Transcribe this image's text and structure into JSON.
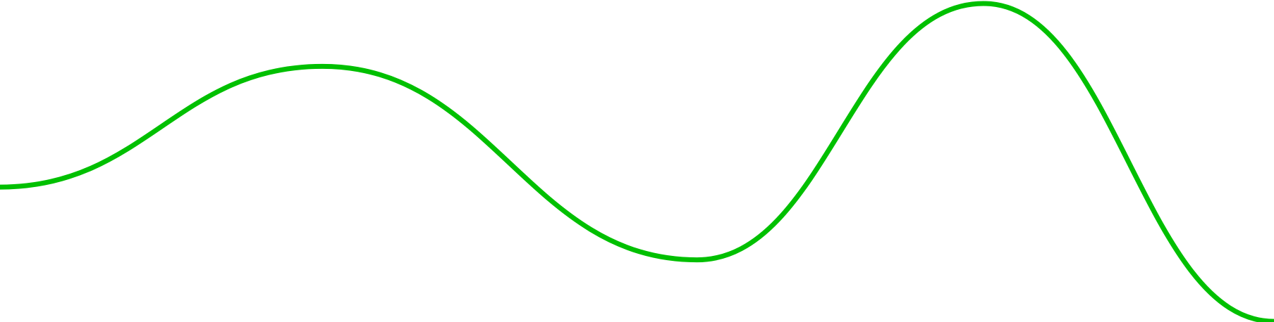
{
  "chart_data": {
    "type": "line",
    "title": "",
    "xlabel": "",
    "ylabel": "",
    "grid": false,
    "legend": "none",
    "xlim": [
      0,
      1
    ],
    "ylim": [
      0,
      1
    ],
    "series": [
      {
        "color": "#00c000",
        "smooth": true,
        "x": [
          0.0,
          0.253,
          0.547,
          0.772,
          1.0
        ],
        "y": [
          0.419,
          0.794,
          0.193,
          0.989,
          0.002
        ]
      }
    ]
  }
}
